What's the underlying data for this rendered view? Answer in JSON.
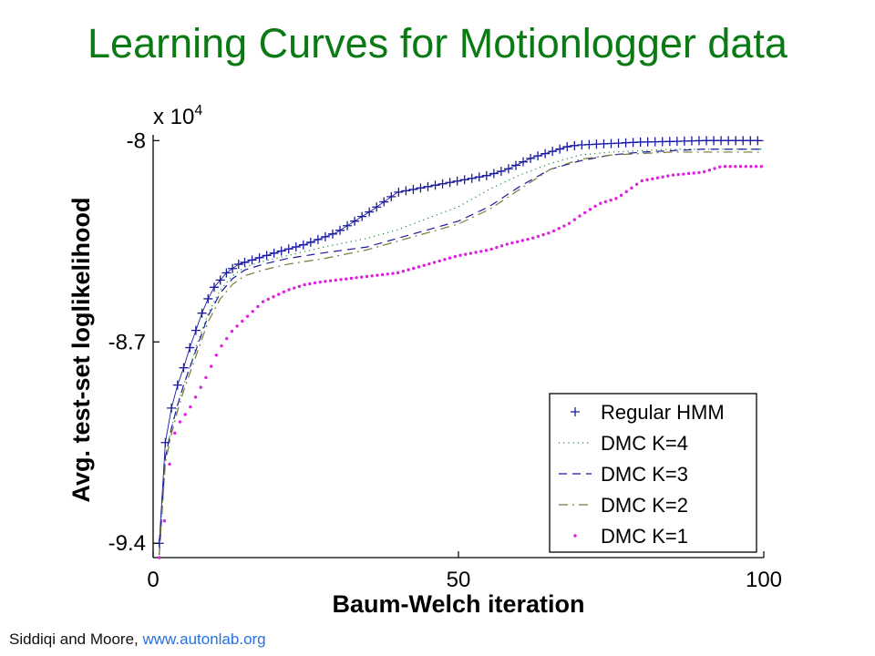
{
  "slide": {
    "title": "Learning Curves for Motionlogger data",
    "footer_text": "Siddiqi and Moore,",
    "footer_link": "www.autonlab.org"
  },
  "chart_data": {
    "type": "line",
    "title": "",
    "xlabel": "Baum-Welch iteration",
    "ylabel": "Avg. test-set loglikelihood",
    "y_multiplier_text": "x 10",
    "y_multiplier_exp": "4",
    "xlim": [
      0,
      100
    ],
    "ylim": [
      -9.45,
      -7.98
    ],
    "x_ticks": [
      0,
      50,
      100
    ],
    "x_tick_labels": [
      "0",
      "50",
      "100"
    ],
    "y_ticks": [
      -8,
      -8.7,
      -9.4
    ],
    "y_tick_labels": [
      "-8",
      "-8.7",
      "-9.4"
    ],
    "grid": false,
    "legend_position": "bottom-right",
    "series": [
      {
        "name": "Regular HMM",
        "color": "#1a1aa0",
        "style": "plus",
        "x": [
          1,
          2,
          3,
          4,
          5,
          6,
          7,
          8,
          9,
          10,
          12,
          14,
          17,
          20,
          25,
          30,
          33,
          36,
          38,
          40,
          45,
          50,
          55,
          58,
          60,
          62,
          65,
          68,
          70,
          75,
          80,
          85,
          90,
          95,
          100
        ],
        "y": [
          -9.4,
          -9.05,
          -8.93,
          -8.85,
          -8.79,
          -8.72,
          -8.66,
          -8.6,
          -8.55,
          -8.51,
          -8.46,
          -8.43,
          -8.41,
          -8.39,
          -8.36,
          -8.32,
          -8.28,
          -8.24,
          -8.21,
          -8.18,
          -8.16,
          -8.14,
          -8.12,
          -8.1,
          -8.08,
          -8.06,
          -8.04,
          -8.02,
          -8.015,
          -8.01,
          -8.005,
          -8.003,
          -8.0,
          -8.0,
          -8.0
        ]
      },
      {
        "name": "DMC K=4",
        "color": "#1a8a30",
        "style": "dotted",
        "x": [
          1,
          2,
          3,
          4,
          5,
          7,
          9,
          11,
          13,
          15,
          18,
          22,
          28,
          35,
          40,
          45,
          50,
          55,
          60,
          65,
          70,
          75,
          80,
          85,
          90,
          95,
          100
        ],
        "y": [
          -9.44,
          -9.1,
          -9.0,
          -8.92,
          -8.85,
          -8.72,
          -8.6,
          -8.52,
          -8.47,
          -8.44,
          -8.42,
          -8.4,
          -8.37,
          -8.34,
          -8.31,
          -8.27,
          -8.23,
          -8.17,
          -8.12,
          -8.08,
          -8.05,
          -8.04,
          -8.035,
          -8.03,
          -8.03,
          -8.03,
          -8.03
        ]
      },
      {
        "name": "DMC K=3",
        "color": "#1a1aa0",
        "style": "dashed",
        "x": [
          1,
          2,
          3,
          4,
          5,
          7,
          9,
          11,
          13,
          15,
          18,
          22,
          28,
          35,
          40,
          45,
          50,
          55,
          60,
          65,
          70,
          75,
          80,
          85,
          90,
          95,
          100
        ],
        "y": [
          -9.44,
          -9.1,
          -9.0,
          -8.92,
          -8.85,
          -8.73,
          -8.61,
          -8.53,
          -8.48,
          -8.45,
          -8.43,
          -8.41,
          -8.39,
          -8.37,
          -8.34,
          -8.31,
          -8.28,
          -8.23,
          -8.16,
          -8.1,
          -8.07,
          -8.05,
          -8.04,
          -8.035,
          -8.03,
          -8.03,
          -8.03
        ]
      },
      {
        "name": "DMC K=2",
        "color": "#7a7a3a",
        "style": "dashdot",
        "x": [
          1,
          2,
          3,
          4,
          5,
          7,
          9,
          11,
          13,
          15,
          18,
          22,
          28,
          35,
          40,
          45,
          50,
          55,
          60,
          65,
          70,
          75,
          80,
          85,
          90,
          95,
          100
        ],
        "y": [
          -9.44,
          -9.12,
          -9.02,
          -8.94,
          -8.87,
          -8.75,
          -8.63,
          -8.55,
          -8.5,
          -8.47,
          -8.45,
          -8.43,
          -8.41,
          -8.38,
          -8.35,
          -8.32,
          -8.29,
          -8.24,
          -8.17,
          -8.1,
          -8.065,
          -8.05,
          -8.045,
          -8.04,
          -8.04,
          -8.04,
          -8.04
        ]
      },
      {
        "name": "DMC K=1",
        "color": "#e020e0",
        "style": "dots",
        "x": [
          1,
          2,
          3,
          4,
          5,
          6,
          7,
          8,
          9,
          10,
          11,
          12,
          13,
          14,
          15,
          16,
          17,
          18,
          20,
          22,
          25,
          28,
          32,
          36,
          40,
          45,
          50,
          55,
          58,
          62,
          65,
          68,
          70,
          73,
          76,
          80,
          85,
          90,
          93,
          95,
          100
        ],
        "y": [
          -9.45,
          -9.3,
          -9.05,
          -8.99,
          -8.96,
          -8.93,
          -8.89,
          -8.85,
          -8.81,
          -8.76,
          -8.72,
          -8.69,
          -8.66,
          -8.64,
          -8.62,
          -8.6,
          -8.58,
          -8.56,
          -8.54,
          -8.52,
          -8.5,
          -8.49,
          -8.48,
          -8.47,
          -8.46,
          -8.43,
          -8.4,
          -8.38,
          -8.36,
          -8.34,
          -8.32,
          -8.29,
          -8.26,
          -8.22,
          -8.2,
          -8.14,
          -8.12,
          -8.11,
          -8.09,
          -8.09,
          -8.09
        ]
      }
    ]
  }
}
